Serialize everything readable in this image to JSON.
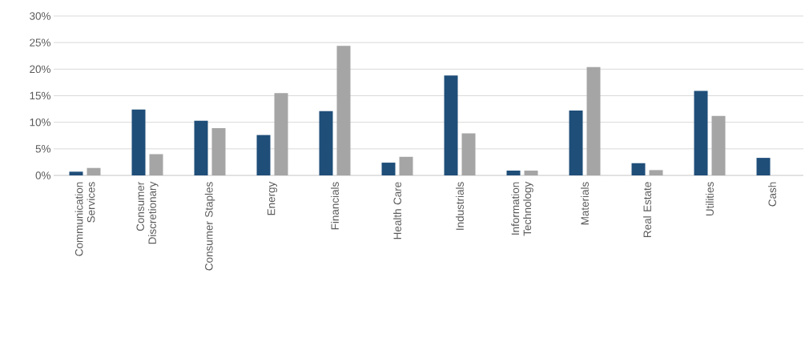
{
  "chart_data": {
    "type": "bar",
    "categories": [
      "Communication Services",
      "Consumer Discretionary",
      "Consumer Staples",
      "Energy",
      "Financials",
      "Health Care",
      "Industrials",
      "Information Technology",
      "Materials",
      "Real Estate",
      "Utilities",
      "Cash"
    ],
    "series": [
      {
        "color": "#1f4e79",
        "values": [
          0.7,
          12.4,
          10.3,
          7.6,
          12.1,
          2.4,
          18.8,
          0.9,
          12.2,
          2.3,
          15.9,
          3.3
        ]
      },
      {
        "color": "#a5a5a5",
        "values": [
          1.4,
          4.0,
          8.9,
          15.5,
          24.4,
          3.5,
          7.9,
          0.9,
          20.4,
          1.0,
          11.2,
          null
        ]
      }
    ],
    "ylim": [
      0,
      30
    ],
    "yticks": [
      {
        "value": 0,
        "label": "0%"
      },
      {
        "value": 5,
        "label": "5%"
      },
      {
        "value": 10,
        "label": "10%"
      },
      {
        "value": 15,
        "label": "15%"
      },
      {
        "value": 20,
        "label": "20%"
      },
      {
        "value": 25,
        "label": "25%"
      },
      {
        "value": 30,
        "label": "30%"
      }
    ],
    "grid": "y"
  }
}
